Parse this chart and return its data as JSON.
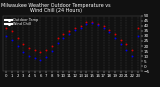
{
  "title": "Milwaukee Weather Outdoor Temperature vs Wind Chill (24 Hours)",
  "title_fontsize": 3.5,
  "background_color": "#111111",
  "plot_bg_color": "#111111",
  "temp_color": "#dd0000",
  "windchill_color": "#0000ee",
  "legend_temp": "Outdoor Temp",
  "legend_wc": "Wind Chill",
  "ylim": [
    -5,
    50
  ],
  "yticks": [
    -5,
    0,
    5,
    10,
    15,
    20,
    25,
    30,
    35,
    40,
    45,
    50
  ],
  "ytick_fontsize": 3.0,
  "xtick_fontsize": 2.8,
  "hours": [
    0,
    1,
    2,
    3,
    4,
    5,
    6,
    7,
    8,
    9,
    10,
    11,
    12,
    13,
    14,
    15,
    16,
    17,
    18,
    19,
    20,
    21,
    22,
    23
  ],
  "temp": [
    38,
    35,
    28,
    22,
    18,
    16,
    14,
    16,
    20,
    28,
    32,
    35,
    38,
    40,
    44,
    44,
    42,
    40,
    36,
    32,
    26,
    22,
    16,
    38
  ],
  "windchill": [
    30,
    26,
    20,
    14,
    10,
    8,
    6,
    9,
    15,
    23,
    28,
    32,
    36,
    38,
    42,
    43,
    41,
    38,
    34,
    28,
    22,
    16,
    10,
    30
  ],
  "grid_color": "#555555",
  "marker_size": 1.8,
  "text_color": "#ffffff",
  "spine_color": "#555555"
}
